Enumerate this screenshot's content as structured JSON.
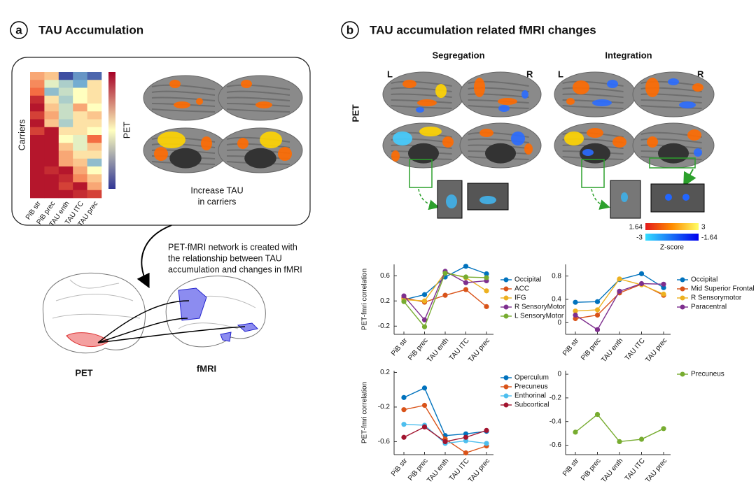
{
  "panel_a": {
    "label": "a",
    "title": "TAU Accumulation",
    "brain_caption_line1": "Increase TAU",
    "brain_caption_line2": "in carriers",
    "network_text_lines": [
      "PET-fMRI network is created with",
      "the relationship between TAU",
      "accumulation and changes in fMRI"
    ],
    "pet_label": "PET",
    "fmri_label": "fMRI"
  },
  "panel_b": {
    "label": "b",
    "title": "TAU accumulation related fMRI changes",
    "segregation": "Segregation",
    "integration": "Integration",
    "row_label": "PET",
    "hemis": [
      "L",
      "R",
      "L",
      "R"
    ],
    "zscore": {
      "pos_min": "1.64",
      "pos_max": "3",
      "neg_min": "-3",
      "neg_max": "-1.64",
      "label": "Z-score"
    }
  },
  "chart_data": [
    {
      "type": "heatmap",
      "ylabel": "Carriers",
      "colorbar_label": "PET",
      "categories": [
        "PiB str",
        "PiB prec",
        "TAU enth",
        "TAU ITC",
        "TAU prec"
      ],
      "zlim": [
        -1,
        1
      ],
      "values": [
        [
          0.3,
          0.2,
          -0.9,
          -0.6,
          -0.8
        ],
        [
          0.4,
          -0.1,
          -0.3,
          -0.5,
          0.1
        ],
        [
          0.5,
          -0.4,
          -0.2,
          0.0,
          0.1
        ],
        [
          0.8,
          0.1,
          -0.3,
          0.0,
          0.1
        ],
        [
          0.9,
          0.2,
          -0.2,
          0.3,
          0.0
        ],
        [
          0.7,
          0.3,
          -0.2,
          0.1,
          0.2
        ],
        [
          0.9,
          0.2,
          -0.3,
          0.1,
          0.1
        ],
        [
          0.7,
          0.9,
          0.1,
          0.1,
          0.0
        ],
        [
          0.9,
          0.9,
          0.0,
          -0.1,
          0.5
        ],
        [
          0.9,
          0.9,
          0.2,
          -0.1,
          0.2
        ],
        [
          0.9,
          0.9,
          0.3,
          0.1,
          0.1
        ],
        [
          0.9,
          0.9,
          0.3,
          0.2,
          -0.4
        ],
        [
          0.9,
          0.8,
          0.9,
          0.3,
          0.0
        ],
        [
          0.9,
          0.9,
          0.8,
          0.4,
          0.2
        ],
        [
          0.9,
          0.9,
          0.7,
          0.9,
          0.3
        ],
        [
          0.9,
          0.9,
          0.9,
          0.8,
          0.7
        ]
      ]
    },
    {
      "type": "line",
      "ylabel": "PET-fmri correlation",
      "categories": [
        "PiB str",
        "PiB prec",
        "TAU enth",
        "TAU ITC",
        "TAU prec"
      ],
      "ylim": [
        -0.33,
        0.78
      ],
      "yticks": [
        -0.2,
        0.2,
        0.6
      ],
      "series": [
        {
          "name": "Occipital",
          "color": "#0072bd",
          "values": [
            0.22,
            0.3,
            0.58,
            0.75,
            0.63
          ]
        },
        {
          "name": "ACC",
          "color": "#d95319",
          "values": [
            0.25,
            0.18,
            0.29,
            0.38,
            0.11
          ]
        },
        {
          "name": "IFG",
          "color": "#edb120",
          "values": [
            0.22,
            0.2,
            0.65,
            0.57,
            0.36
          ]
        },
        {
          "name": "R SensoryMotor",
          "color": "#7e2f8e",
          "values": [
            0.28,
            -0.1,
            0.67,
            0.49,
            0.52
          ]
        },
        {
          "name": "L SensoryMotor",
          "color": "#77ac30",
          "values": [
            0.19,
            -0.21,
            0.64,
            0.58,
            0.57
          ]
        }
      ]
    },
    {
      "type": "line",
      "categories": [
        "PiB str",
        "PiB prec",
        "TAU enth",
        "TAU ITC",
        "TAU prec"
      ],
      "ylim": [
        -0.2,
        1.0
      ],
      "yticks": [
        0,
        0.4,
        0.8
      ],
      "series": [
        {
          "name": "Occipital",
          "color": "#0072bd",
          "values": [
            0.35,
            0.36,
            0.74,
            0.84,
            0.6
          ]
        },
        {
          "name": "Mid Superior Frontal",
          "color": "#d95319",
          "values": [
            0.07,
            0.13,
            0.51,
            0.66,
            0.47
          ]
        },
        {
          "name": "R Sensorymotor",
          "color": "#edb120",
          "values": [
            0.2,
            0.22,
            0.75,
            0.65,
            0.49
          ]
        },
        {
          "name": "Paracentral",
          "color": "#7e2f8e",
          "values": [
            0.13,
            -0.12,
            0.54,
            0.67,
            0.66
          ]
        }
      ]
    },
    {
      "type": "line",
      "ylabel": "PET-fmri correlation",
      "categories": [
        "PiB str",
        "PiB prec",
        "TAU enth",
        "TAU ITC",
        "TAU prec"
      ],
      "ylim": [
        -0.75,
        0.22
      ],
      "yticks": [
        0.2,
        -0.2,
        -0.6
      ],
      "series": [
        {
          "name": "Operculum",
          "color": "#0072bd",
          "values": [
            -0.09,
            0.02,
            -0.53,
            -0.51,
            -0.48
          ]
        },
        {
          "name": "Precuneus",
          "color": "#d95319",
          "values": [
            -0.23,
            -0.18,
            -0.57,
            -0.73,
            -0.65
          ]
        },
        {
          "name": "Enthorinal",
          "color": "#4dbeee",
          "values": [
            -0.4,
            -0.41,
            -0.62,
            -0.59,
            -0.62
          ]
        },
        {
          "name": "Subcortical",
          "color": "#a2142f",
          "values": [
            -0.55,
            -0.43,
            -0.6,
            -0.55,
            -0.47
          ]
        }
      ]
    },
    {
      "type": "line",
      "categories": [
        "PiB str",
        "PiB prec",
        "TAU enth",
        "TAU ITC",
        "TAU prec"
      ],
      "ylim": [
        -0.68,
        0.03
      ],
      "yticks": [
        0,
        -0.2,
        -0.4,
        -0.6
      ],
      "series": [
        {
          "name": "Precuneus",
          "color": "#77ac30",
          "values": [
            -0.49,
            -0.34,
            -0.57,
            -0.55,
            -0.46
          ]
        }
      ]
    }
  ]
}
